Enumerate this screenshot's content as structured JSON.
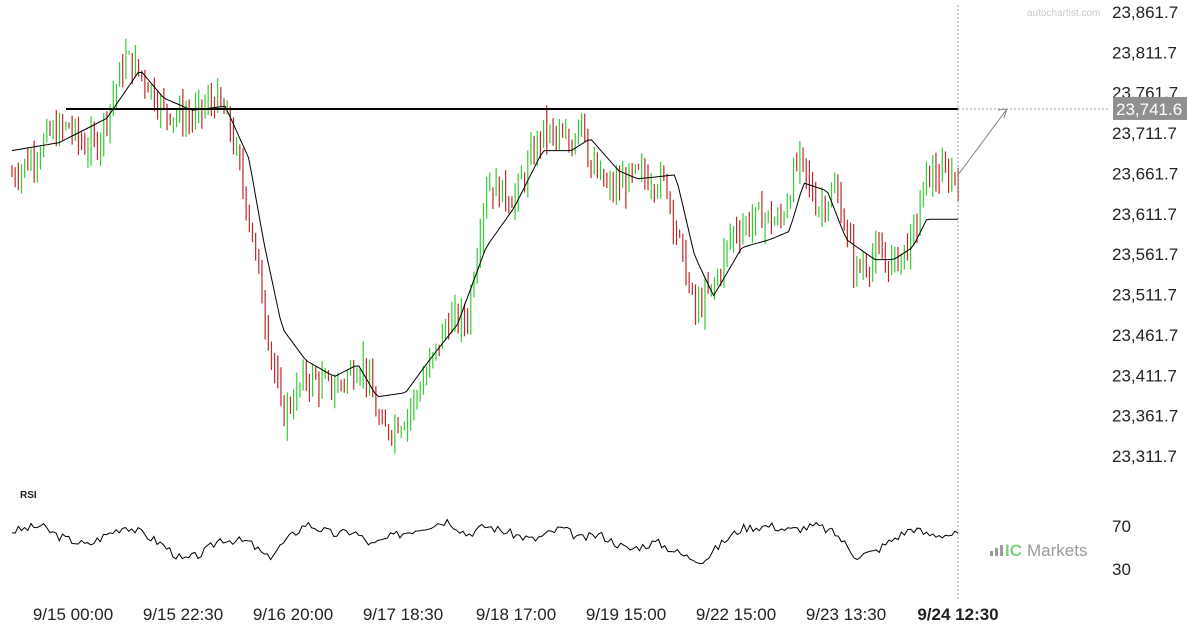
{
  "chart_data": {
    "type": "candlestick",
    "watermark": "autochartist.com",
    "y_ticks": [
      "23,861.7",
      "23,811.7",
      "23,761.7",
      "23,711.7",
      "23,661.7",
      "23,611.7",
      "23,561.7",
      "23,511.7",
      "23,461.7",
      "23,411.7",
      "23,361.7",
      "23,311.7"
    ],
    "y_tick_values": [
      23861.7,
      23811.7,
      23761.7,
      23711.7,
      23661.7,
      23611.7,
      23561.7,
      23511.7,
      23461.7,
      23411.7,
      23361.7,
      23311.7
    ],
    "ylim": [
      23295,
      23868
    ],
    "x_labels": [
      "9/15 00:00",
      "9/15 22:30",
      "9/16 20:00",
      "9/17 18:30",
      "9/18 17:00",
      "9/19 15:00",
      "9/22 15:00",
      "9/23 13:30",
      "9/24 12:30"
    ],
    "current_price_label": "23,741.6",
    "resistance_level": 23741.6,
    "colors": {
      "up": "#32cd32",
      "down": "#c0282a",
      "ma": "#000000",
      "resistance": "#000000",
      "price_tag": "#909090",
      "projection": "#808080"
    },
    "price_path": [
      [
        0,
        23660
      ],
      [
        0.02,
        23680
      ],
      [
        0.04,
        23710
      ],
      [
        0.06,
        23720
      ],
      [
        0.075,
        23695
      ],
      [
        0.09,
        23700
      ],
      [
        0.1,
        23735
      ],
      [
        0.12,
        23805
      ],
      [
        0.14,
        23780
      ],
      [
        0.16,
        23740
      ],
      [
        0.19,
        23730
      ],
      [
        0.215,
        23755
      ],
      [
        0.23,
        23720
      ],
      [
        0.25,
        23610
      ],
      [
        0.265,
        23500
      ],
      [
        0.285,
        23360
      ],
      [
        0.31,
        23410
      ],
      [
        0.34,
        23395
      ],
      [
        0.37,
        23430
      ],
      [
        0.39,
        23340
      ],
      [
        0.415,
        23360
      ],
      [
        0.44,
        23420
      ],
      [
        0.46,
        23480
      ],
      [
        0.48,
        23480
      ],
      [
        0.5,
        23650
      ],
      [
        0.53,
        23630
      ],
      [
        0.56,
        23715
      ],
      [
        0.59,
        23695
      ],
      [
        0.6,
        23745
      ],
      [
        0.61,
        23670
      ],
      [
        0.63,
        23640
      ],
      [
        0.66,
        23660
      ],
      [
        0.69,
        23650
      ],
      [
        0.72,
        23490
      ],
      [
        0.74,
        23520
      ],
      [
        0.76,
        23590
      ],
      [
        0.79,
        23610
      ],
      [
        0.81,
        23600
      ],
      [
        0.83,
        23680
      ],
      [
        0.85,
        23620
      ],
      [
        0.87,
        23640
      ],
      [
        0.89,
        23540
      ],
      [
        0.91,
        23560
      ],
      [
        0.93,
        23550
      ],
      [
        0.95,
        23580
      ],
      [
        0.965,
        23660
      ]
    ],
    "ma_path": [
      [
        0,
        23690
      ],
      [
        0.05,
        23700
      ],
      [
        0.1,
        23730
      ],
      [
        0.135,
        23790
      ],
      [
        0.16,
        23755
      ],
      [
        0.19,
        23740
      ],
      [
        0.225,
        23745
      ],
      [
        0.25,
        23680
      ],
      [
        0.265,
        23580
      ],
      [
        0.285,
        23470
      ],
      [
        0.31,
        23430
      ],
      [
        0.34,
        23410
      ],
      [
        0.365,
        23425
      ],
      [
        0.385,
        23385
      ],
      [
        0.415,
        23390
      ],
      [
        0.44,
        23430
      ],
      [
        0.47,
        23475
      ],
      [
        0.5,
        23570
      ],
      [
        0.53,
        23620
      ],
      [
        0.56,
        23690
      ],
      [
        0.59,
        23690
      ],
      [
        0.61,
        23705
      ],
      [
        0.64,
        23665
      ],
      [
        0.66,
        23655
      ],
      [
        0.7,
        23660
      ],
      [
        0.72,
        23560
      ],
      [
        0.74,
        23510
      ],
      [
        0.77,
        23570
      ],
      [
        0.8,
        23580
      ],
      [
        0.82,
        23590
      ],
      [
        0.835,
        23650
      ],
      [
        0.86,
        23640
      ],
      [
        0.88,
        23580
      ],
      [
        0.91,
        23555
      ],
      [
        0.93,
        23555
      ],
      [
        0.95,
        23570
      ],
      [
        0.965,
        23605
      ]
    ],
    "rsi": {
      "title": "RSI",
      "ticks": [
        "70",
        "30"
      ],
      "tick_values": [
        70,
        30
      ],
      "ylim": [
        20,
        80
      ],
      "path": [
        [
          0,
          65
        ],
        [
          0.03,
          70
        ],
        [
          0.05,
          60
        ],
        [
          0.08,
          52
        ],
        [
          0.1,
          62
        ],
        [
          0.12,
          70
        ],
        [
          0.14,
          62
        ],
        [
          0.16,
          52
        ],
        [
          0.18,
          38
        ],
        [
          0.2,
          44
        ],
        [
          0.22,
          58
        ],
        [
          0.25,
          55
        ],
        [
          0.27,
          40
        ],
        [
          0.29,
          57
        ],
        [
          0.31,
          72
        ],
        [
          0.34,
          62
        ],
        [
          0.36,
          65
        ],
        [
          0.38,
          52
        ],
        [
          0.4,
          60
        ],
        [
          0.43,
          68
        ],
        [
          0.46,
          75
        ],
        [
          0.48,
          62
        ],
        [
          0.5,
          70
        ],
        [
          0.53,
          62
        ],
        [
          0.55,
          57
        ],
        [
          0.58,
          68
        ],
        [
          0.6,
          58
        ],
        [
          0.62,
          62
        ],
        [
          0.65,
          48
        ],
        [
          0.68,
          55
        ],
        [
          0.71,
          42
        ],
        [
          0.73,
          38
        ],
        [
          0.75,
          55
        ],
        [
          0.77,
          68
        ],
        [
          0.8,
          70
        ],
        [
          0.82,
          66
        ],
        [
          0.85,
          70
        ],
        [
          0.87,
          62
        ],
        [
          0.89,
          42
        ],
        [
          0.91,
          46
        ],
        [
          0.93,
          58
        ],
        [
          0.95,
          68
        ],
        [
          0.965,
          62
        ]
      ]
    }
  },
  "branding": {
    "brand_ic": "IC",
    "brand_markets": "Markets"
  }
}
